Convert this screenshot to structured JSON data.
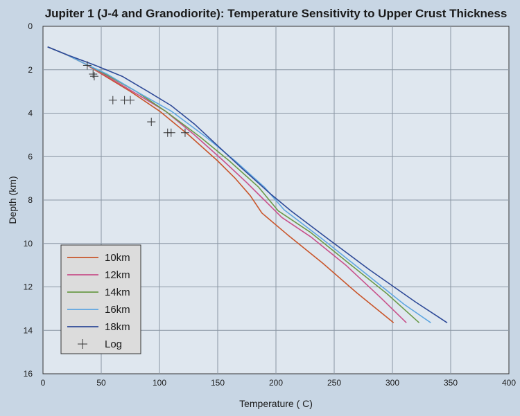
{
  "chart_data": {
    "type": "line",
    "title": "Jupiter 1 (J-4 and Granodiorite): Temperature Sensitivity to Upper Crust Thickness",
    "xlabel": "Temperature ( C)",
    "ylabel": "Depth (km)",
    "xlim": [
      0,
      400
    ],
    "ylim": [
      0,
      16
    ],
    "y_inverted": true,
    "x_ticks": [
      0,
      50,
      100,
      150,
      200,
      250,
      300,
      350,
      400
    ],
    "y_ticks": [
      0,
      2,
      4,
      6,
      8,
      10,
      12,
      14,
      16
    ],
    "grid": true,
    "legend_position": "bottom-left",
    "series": [
      {
        "name": "10km",
        "color": "#c9552a",
        "x": [
          4,
          20,
          35,
          55,
          75,
          100,
          125,
          150,
          165,
          178,
          188,
          210,
          240,
          270,
          301
        ],
        "y": [
          0.95,
          1.3,
          1.7,
          2.35,
          3.0,
          3.9,
          5.0,
          6.2,
          7.0,
          7.8,
          8.6,
          9.6,
          10.9,
          12.3,
          13.65
        ]
      },
      {
        "name": "12km",
        "color": "#c8508a",
        "x": [
          4,
          20,
          35,
          55,
          80,
          105,
          130,
          155,
          175,
          190,
          205,
          230,
          260,
          290,
          312
        ],
        "y": [
          0.95,
          1.3,
          1.7,
          2.3,
          3.1,
          3.9,
          5.0,
          6.2,
          7.2,
          8.0,
          8.8,
          9.7,
          11.0,
          12.5,
          13.65
        ]
      },
      {
        "name": "14km",
        "color": "#6a9a48",
        "x": [
          4,
          20,
          35,
          55,
          80,
          105,
          135,
          160,
          185,
          202,
          230,
          260,
          295,
          323
        ],
        "y": [
          0.95,
          1.3,
          1.7,
          2.25,
          3.0,
          3.9,
          5.1,
          6.2,
          7.4,
          8.5,
          9.5,
          10.8,
          12.3,
          13.65
        ]
      },
      {
        "name": "16km",
        "color": "#5fa6e0",
        "x": [
          4,
          20,
          35,
          55,
          80,
          110,
          140,
          165,
          190,
          207,
          240,
          275,
          310,
          333
        ],
        "y": [
          0.95,
          1.3,
          1.7,
          2.2,
          3.0,
          3.9,
          5.1,
          6.2,
          7.4,
          8.45,
          9.8,
          11.3,
          12.8,
          13.65
        ]
      },
      {
        "name": "18km",
        "color": "#2e4a98",
        "x": [
          4,
          20,
          45,
          68,
          90,
          110,
          130,
          150,
          170,
          195,
          213,
          245,
          280,
          320,
          347
        ],
        "y": [
          0.95,
          1.3,
          1.8,
          2.3,
          3.0,
          3.65,
          4.5,
          5.5,
          6.5,
          7.7,
          8.5,
          9.8,
          11.2,
          12.7,
          13.65
        ]
      }
    ],
    "log_points": {
      "name": "Log",
      "color": "#333333",
      "x": [
        38,
        43,
        44,
        60,
        70,
        75,
        93,
        107,
        110,
        122
      ],
      "y": [
        1.8,
        2.2,
        2.3,
        3.4,
        3.4,
        3.4,
        4.4,
        4.9,
        4.9,
        4.9
      ]
    }
  }
}
